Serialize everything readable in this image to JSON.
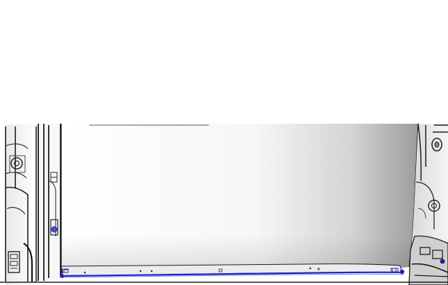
{
  "figure": {
    "kind": "technical-illustration",
    "subject": "vehicle-body-panel-section",
    "view": "interior-rear",
    "background_color": "#ffffff",
    "panel_gradient": [
      "#ffffff",
      "#f6f6f6",
      "#d2d2d2",
      "#9c9c9c"
    ],
    "highlight_color": "#1a22c8",
    "highlighted_part": "lower-sill-seal-strip",
    "structure_color": "#1b1b1b",
    "left_components": [
      "pillar-bracket",
      "grommet",
      "retainer-clip",
      "latch-cluster"
    ],
    "right_components": [
      "pillar-bracket",
      "grommet",
      "bolt-head",
      "connector-cluster"
    ],
    "sill_fastener_count": 8
  }
}
